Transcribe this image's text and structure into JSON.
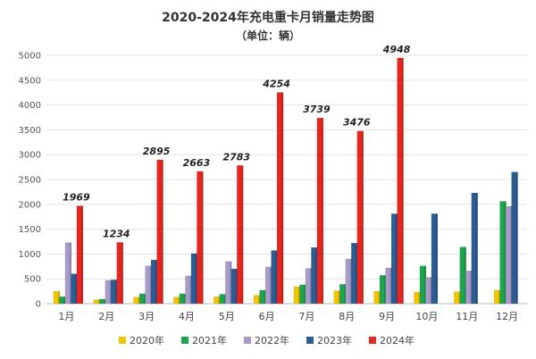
{
  "chart_data": {
    "type": "bar",
    "title": "2020-2024年充电重卡月销量走势图",
    "subtitle": "（单位：辆）",
    "categories": [
      "1月",
      "2月",
      "3月",
      "4月",
      "5月",
      "6月",
      "7月",
      "8月",
      "9月",
      "10月",
      "11月",
      "12月"
    ],
    "ylim": [
      0,
      5000
    ],
    "yticks": [
      0,
      500,
      1000,
      1500,
      2000,
      2500,
      3000,
      3500,
      4000,
      4500,
      5000
    ],
    "grid": true,
    "legend_position": "bottom",
    "series": [
      {
        "name": "2020年",
        "color": "#F5C400",
        "values": [
          250,
          80,
          130,
          130,
          140,
          170,
          340,
          260,
          250,
          230,
          240,
          270
        ]
      },
      {
        "name": "2021年",
        "color": "#1BA54C",
        "values": [
          140,
          90,
          200,
          200,
          190,
          270,
          380,
          390,
          570,
          760,
          1140,
          2060
        ]
      },
      {
        "name": "2022年",
        "color": "#A99BC8",
        "values": [
          1230,
          470,
          760,
          560,
          850,
          740,
          710,
          900,
          720,
          530,
          660,
          1960
        ]
      },
      {
        "name": "2023年",
        "color": "#2B5C93",
        "values": [
          600,
          480,
          880,
          1010,
          700,
          1070,
          1130,
          1220,
          1810,
          1810,
          2230,
          2650
        ]
      },
      {
        "name": "2024年",
        "color": "#E8261E",
        "values": [
          1969,
          1234,
          2895,
          2663,
          2783,
          4254,
          3739,
          3476,
          4948,
          null,
          null,
          null
        ]
      }
    ],
    "data_labels": {
      "series": "2024年",
      "values": [
        "1969",
        "1234",
        "2895",
        "2663",
        "2783",
        "4254",
        "3739",
        "3476",
        "4948"
      ]
    }
  }
}
